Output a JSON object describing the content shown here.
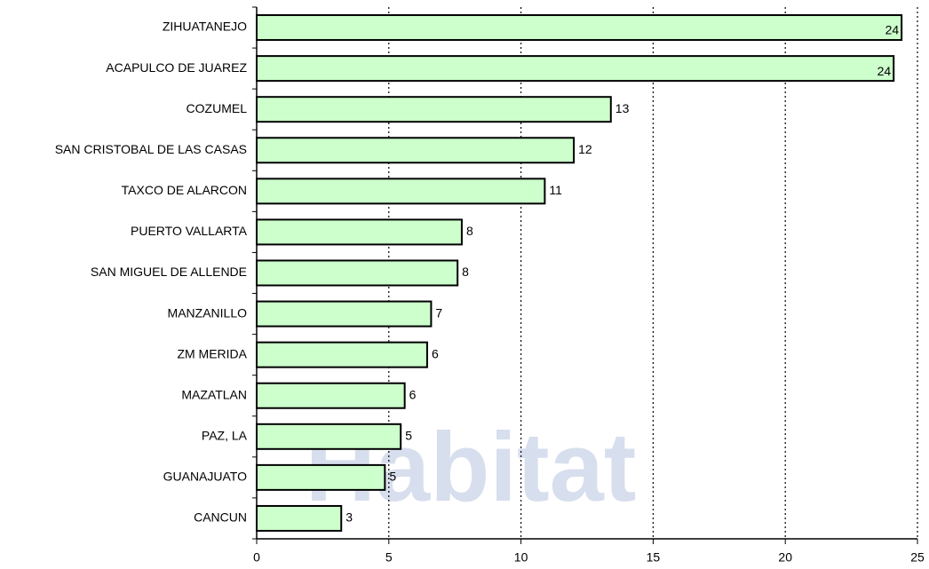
{
  "chart_data": {
    "type": "hbar",
    "watermark": "Habitat",
    "categories": [
      "ZIHUATANEJO",
      "ACAPULCO DE JUAREZ",
      "COZUMEL",
      "SAN CRISTOBAL DE LAS CASAS",
      "TAXCO DE ALARCON",
      "PUERTO VALLARTA",
      "SAN MIGUEL DE ALLENDE",
      "MANZANILLO",
      "ZM MERIDA",
      "MAZATLAN",
      "PAZ, LA",
      "GUANAJUATO",
      "CANCUN"
    ],
    "values": [
      24.4,
      24.1,
      13.4,
      12.0,
      10.9,
      7.76,
      7.6,
      6.6,
      6.45,
      5.6,
      5.45,
      4.85,
      3.2
    ],
    "value_labels": [
      "24",
      "24",
      "13",
      "12",
      "11",
      "8",
      "8",
      "7",
      "6",
      "6",
      "5",
      "5",
      "3"
    ],
    "color": "#ccffcc",
    "xlim": [
      0,
      25
    ],
    "xticks": [
      0,
      5,
      10,
      15,
      20,
      25
    ],
    "grid": true
  }
}
